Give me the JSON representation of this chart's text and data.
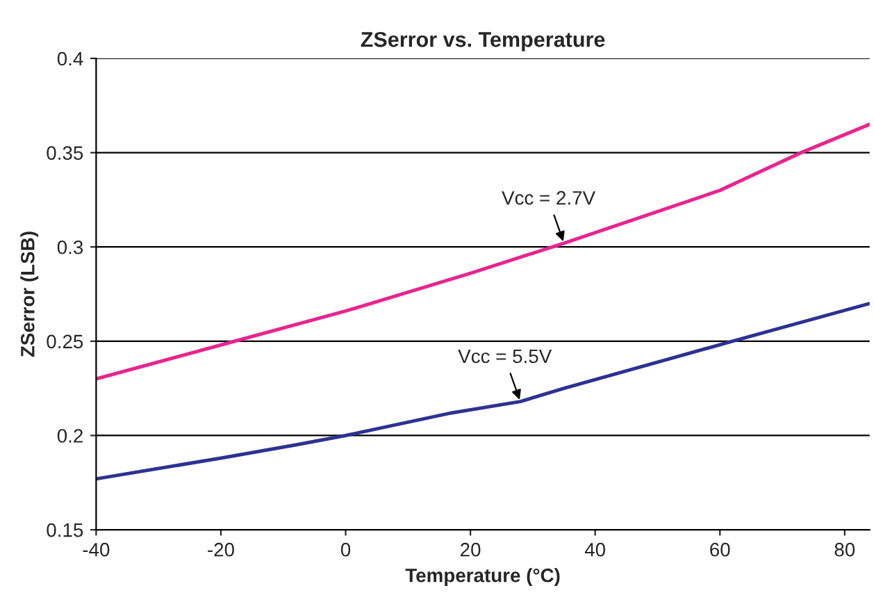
{
  "chart_data": {
    "type": "line",
    "title": "ZSerror vs. Temperature",
    "xlabel": "Temperature (°C)",
    "ylabel": "ZSerror (LSB)",
    "series": [
      {
        "name": "Vcc = 2.7V",
        "color": "#e8258e",
        "x": [
          -40,
          -20,
          0,
          20,
          35,
          60,
          73,
          84
        ],
        "values": [
          0.23,
          0.248,
          0.266,
          0.286,
          0.302,
          0.33,
          0.35,
          0.365
        ]
      },
      {
        "name": "Vcc = 5.5V",
        "color": "#2e3192",
        "x": [
          -40,
          -20,
          -8,
          0,
          17,
          28,
          35,
          62,
          84
        ],
        "values": [
          0.177,
          0.188,
          0.195,
          0.2,
          0.212,
          0.218,
          0.225,
          0.25,
          0.27
        ]
      }
    ],
    "xlim": [
      -40,
      84
    ],
    "ylim": [
      0.15,
      0.4
    ],
    "xticks": [
      -40,
      -20,
      0,
      20,
      40,
      60,
      80
    ],
    "yticks": [
      0.15,
      0.2,
      0.25,
      0.3,
      0.35,
      0.4
    ],
    "grid": "y",
    "legend": false,
    "line_style": "solid",
    "marker": "none"
  }
}
